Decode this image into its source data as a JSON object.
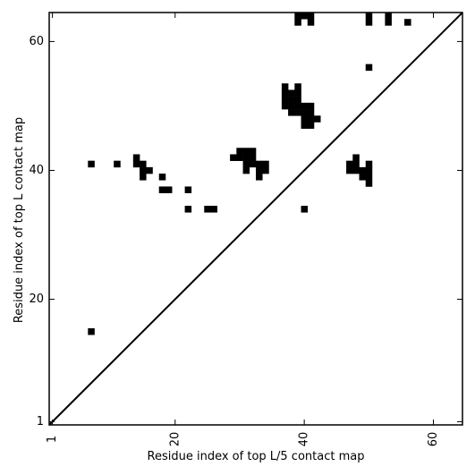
{
  "chart_data": {
    "type": "heatmap",
    "xlabel": "Residue index of top L/5 contact map",
    "ylabel": "Residue index of top L contact map",
    "xlim": [
      0.5,
      64.5
    ],
    "ylim": [
      0.5,
      64.5
    ],
    "x_ticks": [
      1,
      20,
      40,
      60
    ],
    "y_ticks": [
      1,
      20,
      40,
      60
    ],
    "x_tick_labels": [
      "1",
      "20",
      "40",
      "60"
    ],
    "y_tick_labels": [
      "1",
      "20",
      "40",
      "60"
    ],
    "x_tick_rotation": -90,
    "diagonal": {
      "from": [
        1,
        1
      ],
      "to": [
        64,
        64
      ]
    },
    "cell_color": "#000000",
    "background_color": "#ffffff",
    "contacts": [
      [
        7,
        15
      ],
      [
        7,
        41
      ],
      [
        11,
        41
      ],
      [
        14,
        42
      ],
      [
        14,
        41
      ],
      [
        15,
        41
      ],
      [
        15,
        40
      ],
      [
        16,
        40
      ],
      [
        15,
        39
      ],
      [
        18,
        39
      ],
      [
        18,
        37
      ],
      [
        19,
        37
      ],
      [
        22,
        37
      ],
      [
        22,
        34
      ],
      [
        25,
        34
      ],
      [
        26,
        34
      ],
      [
        29,
        42
      ],
      [
        30,
        43
      ],
      [
        30,
        42
      ],
      [
        31,
        43
      ],
      [
        31,
        42
      ],
      [
        31,
        41
      ],
      [
        31,
        40
      ],
      [
        32,
        43
      ],
      [
        32,
        42
      ],
      [
        32,
        41
      ],
      [
        33,
        41
      ],
      [
        33,
        40
      ],
      [
        33,
        39
      ],
      [
        34,
        41
      ],
      [
        34,
        40
      ],
      [
        37,
        53
      ],
      [
        37,
        52
      ],
      [
        37,
        51
      ],
      [
        37,
        50
      ],
      [
        38,
        52
      ],
      [
        38,
        51
      ],
      [
        38,
        50
      ],
      [
        38,
        49
      ],
      [
        39,
        64
      ],
      [
        39,
        63
      ],
      [
        39,
        53
      ],
      [
        39,
        52
      ],
      [
        39,
        51
      ],
      [
        39,
        50
      ],
      [
        39,
        49
      ],
      [
        40,
        64
      ],
      [
        40,
        50
      ],
      [
        40,
        49
      ],
      [
        40,
        48
      ],
      [
        40,
        47
      ],
      [
        40,
        34
      ],
      [
        41,
        64
      ],
      [
        41,
        63
      ],
      [
        41,
        50
      ],
      [
        41,
        49
      ],
      [
        41,
        48
      ],
      [
        41,
        47
      ],
      [
        42,
        48
      ],
      [
        47,
        41
      ],
      [
        47,
        40
      ],
      [
        48,
        42
      ],
      [
        48,
        41
      ],
      [
        48,
        40
      ],
      [
        49,
        40
      ],
      [
        49,
        39
      ],
      [
        50,
        41
      ],
      [
        50,
        40
      ],
      [
        50,
        39
      ],
      [
        50,
        38
      ],
      [
        50,
        64
      ],
      [
        50,
        63
      ],
      [
        50,
        56
      ],
      [
        53,
        64
      ],
      [
        53,
        63
      ],
      [
        56,
        63
      ]
    ]
  }
}
